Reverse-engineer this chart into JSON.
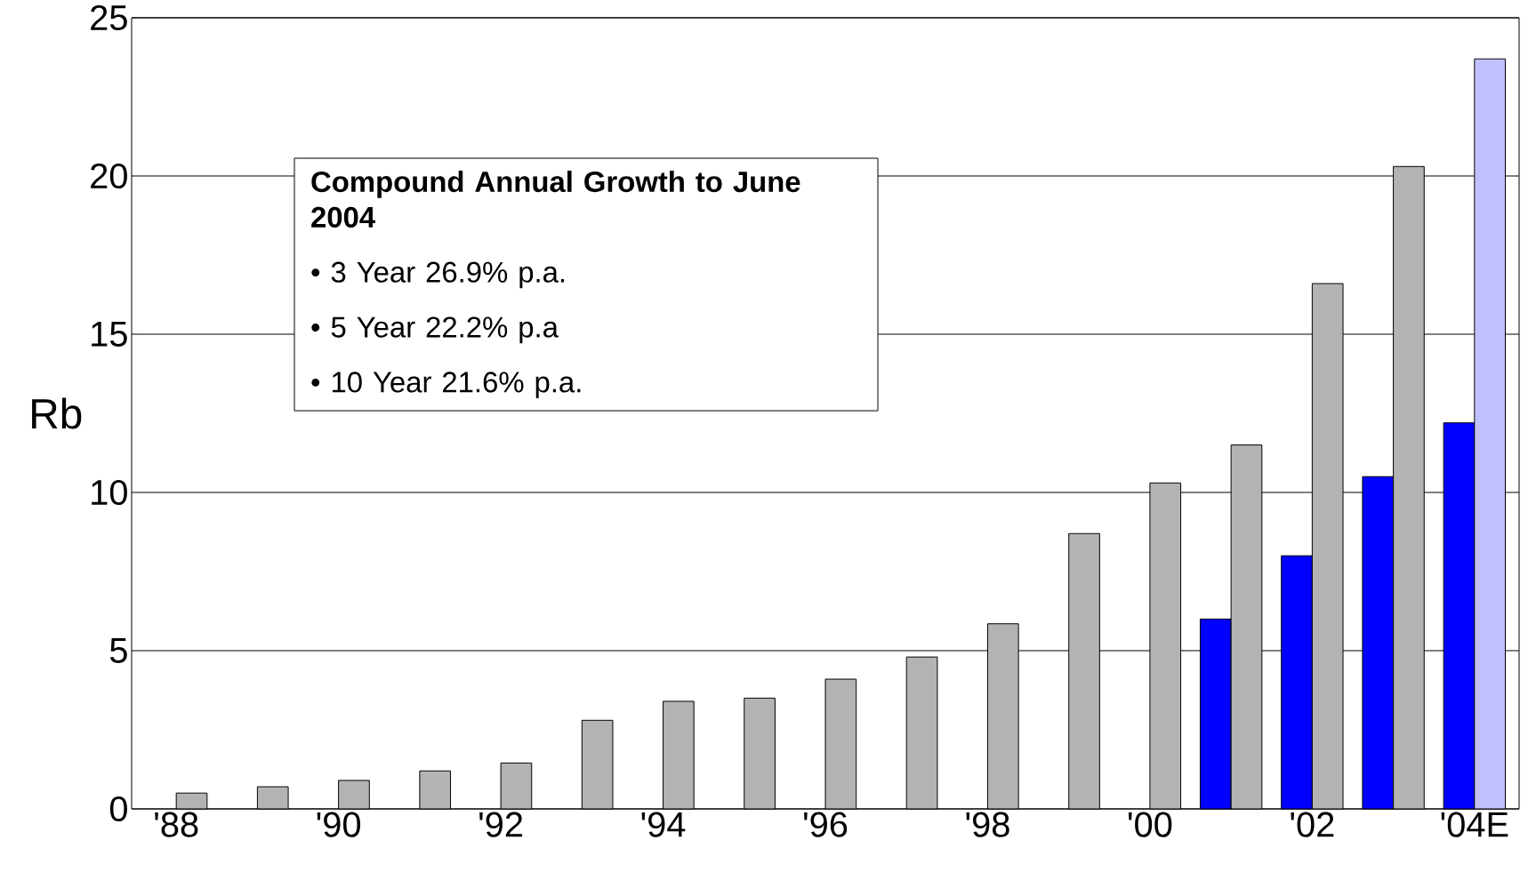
{
  "chart_data": {
    "type": "bar",
    "ylabel": "Rb",
    "categories": [
      "'88",
      null,
      "'90",
      null,
      "'92",
      null,
      "'94",
      null,
      "'96",
      null,
      "'98",
      null,
      "'00",
      null,
      "'02",
      null,
      "'04E"
    ],
    "series": [
      {
        "color": "#0000ff",
        "values": [
          null,
          null,
          null,
          null,
          null,
          null,
          null,
          null,
          null,
          null,
          null,
          null,
          null,
          6.0,
          8.0,
          10.5,
          12.2
        ]
      },
      {
        "color": "#b3b3b3",
        "colors": [
          null,
          null,
          null,
          null,
          null,
          null,
          null,
          null,
          null,
          null,
          null,
          null,
          null,
          null,
          null,
          null,
          "#c0c0ff"
        ],
        "values": [
          0.5,
          0.7,
          0.9,
          1.2,
          1.45,
          2.8,
          3.4,
          3.5,
          4.1,
          4.8,
          5.85,
          8.7,
          10.3,
          11.5,
          16.6,
          20.3,
          23.7
        ]
      }
    ],
    "ylim": [
      0,
      25
    ],
    "yticks": [
      0,
      5,
      10,
      15,
      20,
      25
    ],
    "grid": "y",
    "annotations": [
      "Compound Annual Growth to June 2004",
      "• 3 Year 26.9% p.a.",
      "• 5 Year 22.2% p.a",
      "• 10 Year 21.6% p.a."
    ]
  }
}
